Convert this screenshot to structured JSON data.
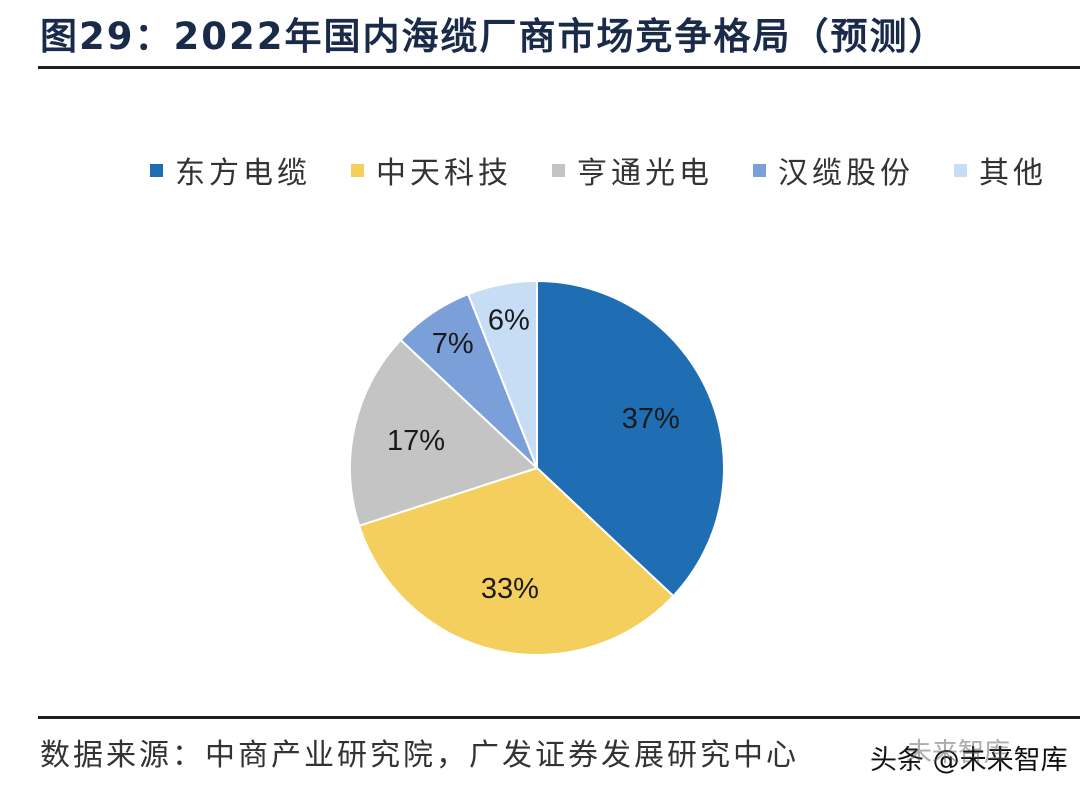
{
  "title": "图29：2022年国内海缆厂商市场竞争格局（预测）",
  "source": "数据来源：中商产业研究院，广发证券发展研究中心",
  "watermark": {
    "text": "头条 @未来智库",
    "ghost": "未来智库"
  },
  "chart_data": {
    "type": "pie",
    "title": "2022年国内海缆厂商市场竞争格局（预测）",
    "legend_position": "top",
    "start_angle_deg": 0,
    "direction": "clockwise",
    "slices": [
      {
        "name": "东方电缆",
        "value": 37,
        "label": "37%",
        "color": "#1f6db3"
      },
      {
        "name": "中天科技",
        "value": 33,
        "label": "33%",
        "color": "#f5cf5e"
      },
      {
        "name": "亨通光电",
        "value": 17,
        "label": "17%",
        "color": "#c4c4c4"
      },
      {
        "name": "汉缆股份",
        "value": 7,
        "label": "7%",
        "color": "#7b9fd8"
      },
      {
        "name": "其他",
        "value": 6,
        "label": "6%",
        "color": "#c7dcf5"
      }
    ]
  }
}
